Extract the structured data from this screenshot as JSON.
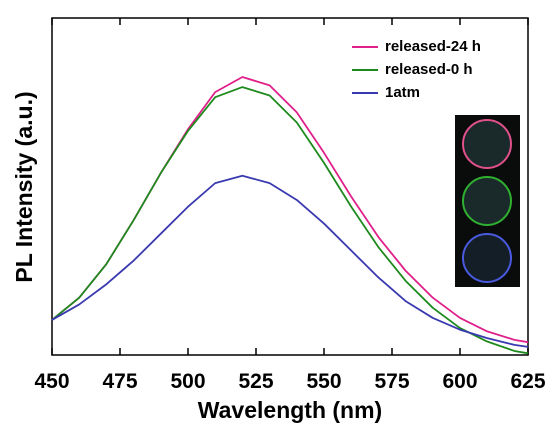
{
  "chart_data": {
    "type": "line",
    "x_label": "Wavelength (nm)",
    "y_label": "PL Intensity (a.u.)",
    "x": [
      450,
      460,
      470,
      480,
      490,
      500,
      510,
      520,
      530,
      540,
      550,
      560,
      570,
      580,
      590,
      600,
      610,
      620,
      625
    ],
    "series": [
      {
        "name": "released-24 h",
        "color": "#e0208a",
        "values": [
          0.104,
          0.17,
          0.27,
          0.4,
          0.54,
          0.67,
          0.78,
          0.825,
          0.8,
          0.72,
          0.6,
          0.47,
          0.35,
          0.25,
          0.17,
          0.11,
          0.07,
          0.045,
          0.038
        ]
      },
      {
        "name": "released-0 h",
        "color": "#1e8a1e",
        "values": [
          0.104,
          0.17,
          0.27,
          0.4,
          0.54,
          0.665,
          0.765,
          0.795,
          0.77,
          0.69,
          0.57,
          0.44,
          0.32,
          0.22,
          0.14,
          0.08,
          0.04,
          0.012,
          0.005
        ]
      },
      {
        "name": "1atm",
        "color": "#3a3ab0",
        "values": [
          0.104,
          0.15,
          0.21,
          0.28,
          0.36,
          0.44,
          0.51,
          0.532,
          0.51,
          0.46,
          0.39,
          0.31,
          0.23,
          0.16,
          0.11,
          0.075,
          0.05,
          0.03,
          0.024
        ]
      }
    ],
    "xlim": [
      450,
      625
    ],
    "xticks": [
      450,
      475,
      500,
      525,
      550,
      575,
      600,
      625
    ],
    "ylim": [
      0,
      1
    ],
    "legend": "upper right"
  }
}
